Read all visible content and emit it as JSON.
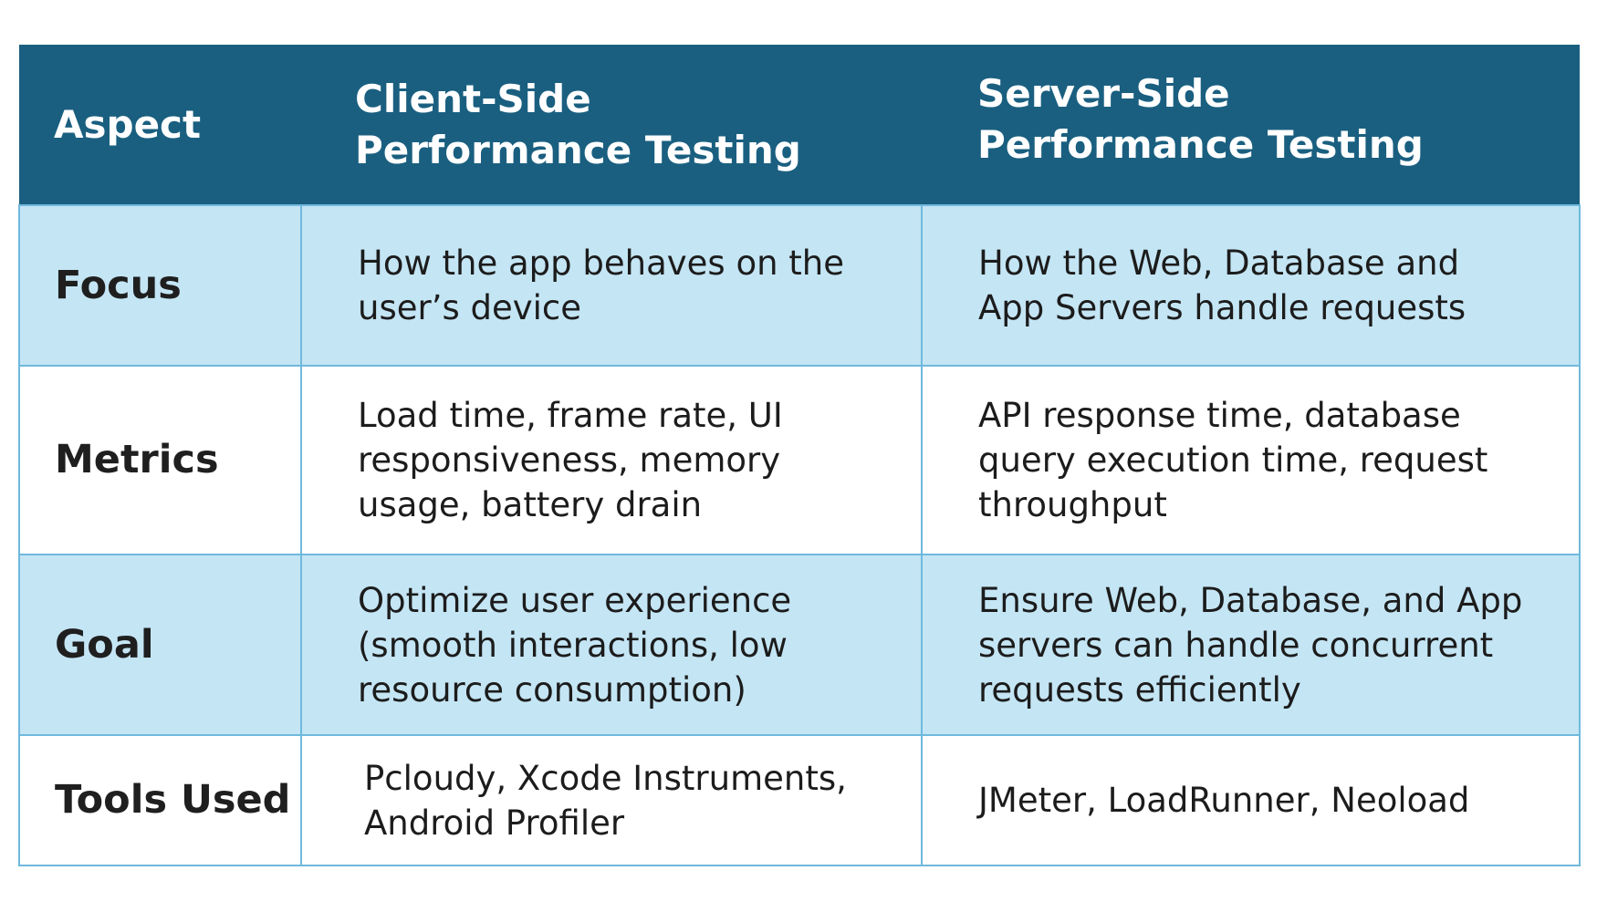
{
  "table": {
    "headers": {
      "aspect": "Aspect",
      "client": "Client-Side\nPerformance Testing",
      "server": "Server-Side\nPerformance Testing"
    },
    "rows": [
      {
        "aspect": "Focus",
        "client": "How the app behaves on the user’s device",
        "server": "How the Web, Database and App Servers handle requests"
      },
      {
        "aspect": "Metrics",
        "client": "Load time, frame rate, UI responsiveness, memory usage, battery drain",
        "server": "API response time, database query execution time, request throughput"
      },
      {
        "aspect": "Goal",
        "client": "Optimize user experience (smooth interactions, low resource consumption)",
        "server": "Ensure Web, Database, and App servers can handle concurrent requests efficiently"
      },
      {
        "aspect": "Tools Used",
        "client": "Pcloudy, Xcode Instruments, Android Profiler",
        "server": "JMeter, LoadRunner, Neoload"
      }
    ]
  },
  "colors": {
    "header_bg": "#1a5f80",
    "shaded_row_bg": "#c4e5f4",
    "border": "#6fb9dd"
  }
}
